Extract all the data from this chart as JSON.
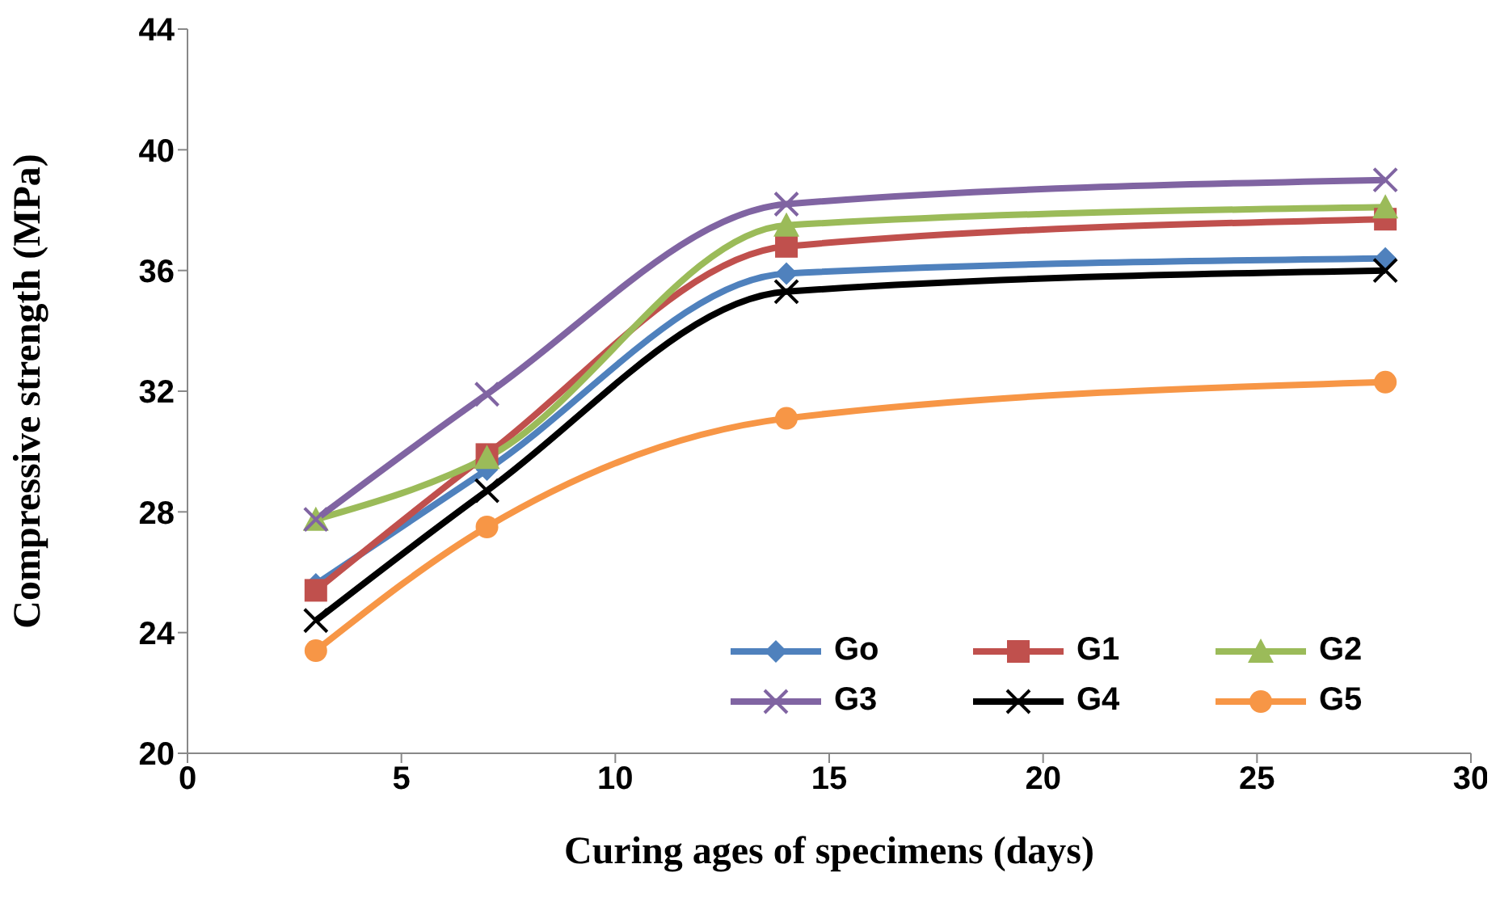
{
  "chart_data": {
    "type": "line",
    "xlabel": "Curing ages of specimens (days)",
    "ylabel": "Compressive strength (MPa)",
    "x": [
      3,
      7,
      14,
      28
    ],
    "series": [
      {
        "name": "Go",
        "color": "#4f81bd",
        "marker": "diamond",
        "values": [
          25.6,
          29.4,
          35.9,
          36.4
        ]
      },
      {
        "name": "G1",
        "color": "#c0504d",
        "marker": "square",
        "values": [
          25.4,
          29.9,
          36.8,
          37.7
        ]
      },
      {
        "name": "G2",
        "color": "#9bbb59",
        "marker": "triangle",
        "values": [
          27.75,
          29.8,
          37.5,
          38.1
        ]
      },
      {
        "name": "G3",
        "color": "#8064a2",
        "marker": "cross",
        "values": [
          27.75,
          31.9,
          38.2,
          39.0
        ]
      },
      {
        "name": "G4",
        "color": "#000000",
        "marker": "cross",
        "values": [
          24.4,
          28.7,
          35.3,
          36.0
        ]
      },
      {
        "name": "G5",
        "color": "#f79646",
        "marker": "circle",
        "values": [
          23.4,
          27.5,
          31.1,
          32.3
        ]
      }
    ],
    "xlim": [
      0,
      30
    ],
    "xticks": [
      0,
      5,
      10,
      15,
      20,
      25,
      30
    ],
    "ylim": [
      20,
      44
    ],
    "yticks": [
      20,
      24,
      28,
      32,
      36,
      40,
      44
    ],
    "grid": false,
    "legend": "bottom right"
  }
}
